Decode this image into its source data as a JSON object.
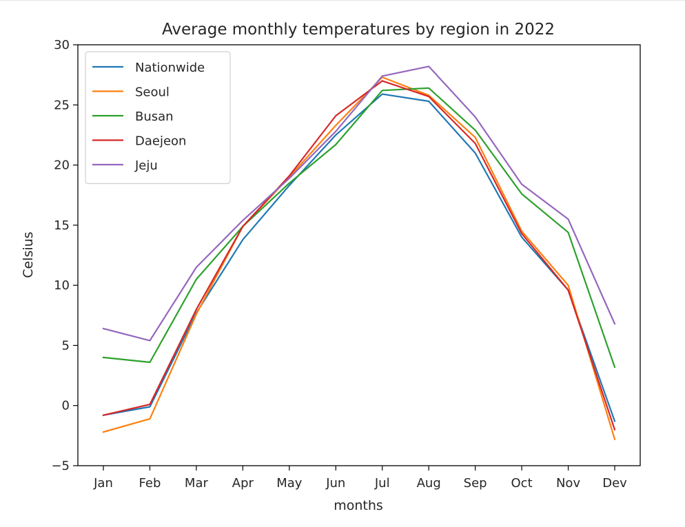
{
  "chart_data": {
    "type": "line",
    "title": "Average monthly temperatures by region in 2022",
    "xlabel": "months",
    "ylabel": "Celsius",
    "categories": [
      "Jan",
      "Feb",
      "Mar",
      "Apr",
      "May",
      "Jun",
      "Jul",
      "Aug",
      "Sep",
      "Oct",
      "Nov",
      "Dev"
    ],
    "ylim": [
      -5,
      30
    ],
    "yticks": [
      "−5",
      "0",
      "5",
      "10",
      "15",
      "20",
      "25",
      "30"
    ],
    "ytick_values": [
      -5,
      0,
      5,
      10,
      15,
      20,
      25,
      30
    ],
    "grid": false,
    "legend_position": "top-left",
    "series": [
      {
        "name": "Nationwide",
        "color": "#1f77b4",
        "values": [
          -0.8,
          -0.1,
          7.7,
          13.8,
          18.3,
          22.5,
          25.9,
          25.3,
          21.0,
          14.0,
          9.6,
          -1.3
        ]
      },
      {
        "name": "Seoul",
        "color": "#ff7f0e",
        "values": [
          -2.2,
          -1.1,
          7.6,
          14.9,
          19.0,
          23.3,
          27.3,
          25.8,
          22.3,
          14.5,
          10.0,
          -2.8
        ]
      },
      {
        "name": "Busan",
        "color": "#2ca02c",
        "values": [
          4.0,
          3.6,
          10.5,
          14.9,
          18.5,
          21.7,
          26.2,
          26.4,
          22.9,
          17.6,
          14.4,
          3.2
        ]
      },
      {
        "name": "Daejeon",
        "color": "#d62728",
        "values": [
          -0.8,
          0.1,
          8.0,
          14.9,
          19.1,
          24.1,
          27.0,
          25.7,
          21.8,
          14.3,
          9.6,
          -2.0
        ]
      },
      {
        "name": "Jeju",
        "color": "#9467bd",
        "values": [
          6.4,
          5.4,
          11.5,
          15.4,
          18.9,
          22.8,
          27.4,
          28.2,
          24.0,
          18.4,
          15.5,
          6.8
        ]
      }
    ]
  }
}
